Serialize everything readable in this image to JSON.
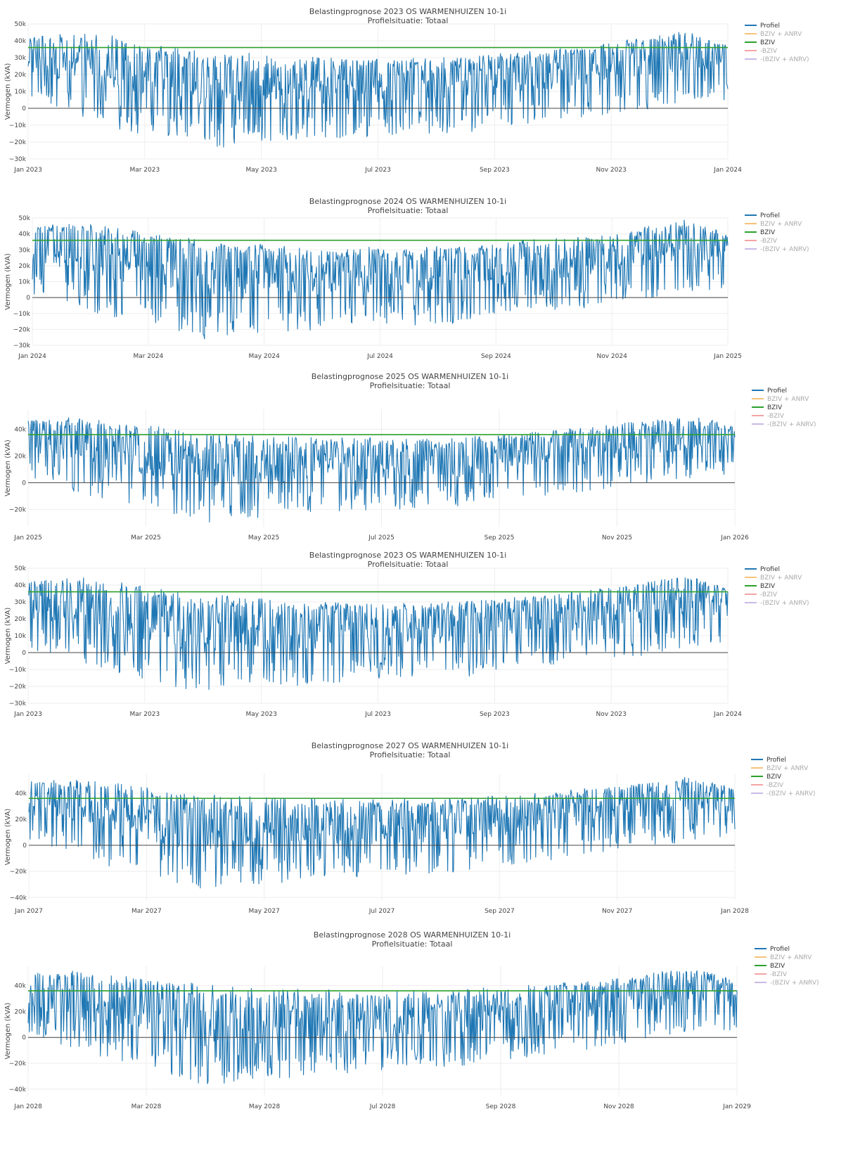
{
  "colors": {
    "profile": "#1f77b4",
    "bziv_anrv": "#f5c37a",
    "bziv": "#2ca02c",
    "neg_bziv": "#f4a4a4",
    "neg_bziv_anrv": "#c9b9e6",
    "zero_line": "#444444",
    "grid": "#eeeeee",
    "legend_text_active": "#333333",
    "legend_text_faded": "#aaaaaa"
  },
  "chart_data": [
    {
      "type": "line",
      "title": "Belastingprognose 2023 OS WARMENHUIZEN 10-1i",
      "subtitle": "Profielsituatie: Totaal",
      "ylabel": "Vermogen (kVA)",
      "x_ticks": [
        "Jan 2023",
        "Mar 2023",
        "May 2023",
        "Jul 2023",
        "Sep 2023",
        "Nov 2023",
        "Jan 2024"
      ],
      "ylim": [
        -30000,
        50000
      ],
      "y_ticks": [
        -30000,
        -20000,
        -10000,
        0,
        10000,
        20000,
        30000,
        40000,
        50000
      ],
      "y_tick_labels": [
        "−30k",
        "−20k",
        "−10k",
        "0",
        "10k",
        "20k",
        "30k",
        "40k",
        "50k"
      ],
      "bziv_level": 36000,
      "profile_envelope_max": [
        42,
        45,
        43,
        38,
        35,
        33,
        31,
        30,
        30,
        30,
        31,
        33,
        35,
        38,
        42,
        46,
        38
      ],
      "profile_envelope_min": [
        2,
        -5,
        -12,
        -18,
        -25,
        -22,
        -20,
        -18,
        -17,
        -15,
        -15,
        -10,
        -8,
        -5,
        -2,
        3,
        5
      ],
      "legend": [
        "Profiel",
        "BZIV + ANRV",
        "BZIV",
        "-BZIV",
        "-(BZIV + ANRV)"
      ],
      "grid": true,
      "legend_position": "right"
    },
    {
      "type": "line",
      "title": "Belastingprognose 2024 OS WARMENHUIZEN 10-1i",
      "subtitle": "Profielsituatie: Totaal",
      "ylabel": "Vermogen (kVA)",
      "x_ticks": [
        "Jan 2024",
        "Mar 2024",
        "May 2024",
        "Jul 2024",
        "Sep 2024",
        "Nov 2024",
        "Jan 2025"
      ],
      "ylim": [
        -30000,
        50000
      ],
      "y_ticks": [
        -30000,
        -20000,
        -10000,
        0,
        10000,
        20000,
        30000,
        40000,
        50000
      ],
      "y_tick_labels": [
        "−30k",
        "−20k",
        "−10k",
        "0",
        "10k",
        "20k",
        "30k",
        "40k",
        "50k"
      ],
      "bziv_level": 36000,
      "profile_envelope_max": [
        45,
        47,
        44,
        40,
        36,
        34,
        33,
        32,
        32,
        32,
        33,
        35,
        38,
        40,
        44,
        49,
        40
      ],
      "profile_envelope_min": [
        2,
        -6,
        -14,
        -20,
        -28,
        -25,
        -22,
        -20,
        -19,
        -17,
        -16,
        -12,
        -9,
        -6,
        -2,
        3,
        5
      ],
      "legend": [
        "Profiel",
        "BZIV + ANRV",
        "BZIV",
        "-BZIV",
        "-(BZIV + ANRV)"
      ],
      "grid": true,
      "legend_position": "right"
    },
    {
      "type": "line",
      "title": "Belastingprognose 2025 OS WARMENHUIZEN 10-1i",
      "subtitle": "Profielsituatie: Totaal",
      "ylabel": "Vermogen (kVA)",
      "x_ticks": [
        "Jan 2025",
        "Mar 2025",
        "May 2025",
        "Jul 2025",
        "Sep 2025",
        "Nov 2025",
        "Jan 2026"
      ],
      "ylim": [
        -33000,
        55000
      ],
      "y_ticks": [
        -20000,
        0,
        20000,
        40000
      ],
      "y_tick_labels": [
        "−20k",
        "0",
        "20k",
        "40k"
      ],
      "bziv_level": 36000,
      "profile_envelope_max": [
        47,
        49,
        46,
        42,
        38,
        36,
        35,
        34,
        34,
        34,
        35,
        37,
        40,
        43,
        47,
        51,
        42
      ],
      "profile_envelope_min": [
        2,
        -7,
        -15,
        -22,
        -30,
        -27,
        -24,
        -22,
        -21,
        -19,
        -18,
        -13,
        -10,
        -7,
        -2,
        3,
        5
      ],
      "legend": [
        "Profiel",
        "BZIV + ANRV",
        "BZIV",
        "-BZIV",
        "-(BZIV + ANRV)"
      ],
      "grid": true,
      "legend_position": "right"
    },
    {
      "type": "line",
      "title": "Belastingprognose 2023 OS WARMENHUIZEN 10-1i",
      "subtitle": "Profielsituatie: Totaal",
      "ylabel": "Vermogen (kVA)",
      "x_ticks": [
        "Jan 2023",
        "Mar 2023",
        "May 2023",
        "Jul 2023",
        "Sep 2023",
        "Nov 2023",
        "Jan 2024"
      ],
      "ylim": [
        -30000,
        50000
      ],
      "y_ticks": [
        -30000,
        -20000,
        -10000,
        0,
        10000,
        20000,
        30000,
        40000,
        50000
      ],
      "y_tick_labels": [
        "−30k",
        "−20k",
        "−10k",
        "0",
        "10k",
        "20k",
        "30k",
        "40k",
        "50k"
      ],
      "bziv_level": 36000,
      "profile_envelope_max": [
        42,
        45,
        43,
        38,
        35,
        33,
        31,
        30,
        30,
        30,
        31,
        33,
        35,
        38,
        42,
        46,
        38
      ],
      "profile_envelope_min": [
        2,
        -5,
        -12,
        -18,
        -25,
        -22,
        -20,
        -18,
        -17,
        -15,
        -15,
        -10,
        -8,
        -5,
        -2,
        3,
        5
      ],
      "legend": [
        "Profiel",
        "BZIV + ANRV",
        "BZIV",
        "-BZIV",
        "-(BZIV + ANRV)"
      ],
      "grid": true,
      "legend_position": "right"
    },
    {
      "type": "line",
      "title": "Belastingprognose 2027 OS WARMENHUIZEN 10-1i",
      "subtitle": "Profielsituatie: Totaal",
      "ylabel": "Vermogen (kVA)",
      "x_ticks": [
        "Jan 2027",
        "Mar 2027",
        "May 2027",
        "Jul 2027",
        "Sep 2027",
        "Nov 2027",
        "Jan 2028"
      ],
      "ylim": [
        -42000,
        55000
      ],
      "y_ticks": [
        -40000,
        -20000,
        0,
        20000,
        40000
      ],
      "y_tick_labels": [
        "−40k",
        "−20k",
        "0",
        "20k",
        "40k"
      ],
      "bziv_level": 36000,
      "profile_envelope_max": [
        49,
        51,
        48,
        44,
        40,
        38,
        37,
        36,
        36,
        36,
        37,
        39,
        42,
        45,
        49,
        53,
        44
      ],
      "profile_envelope_min": [
        2,
        -8,
        -18,
        -26,
        -35,
        -31,
        -28,
        -25,
        -24,
        -22,
        -20,
        -15,
        -11,
        -8,
        -2,
        3,
        5
      ],
      "legend": [
        "Profiel",
        "BZIV + ANRV",
        "BZIV",
        "-BZIV",
        "-(BZIV + ANRV)"
      ],
      "grid": true,
      "legend_position": "right"
    },
    {
      "type": "line",
      "title": "Belastingprognose 2028 OS WARMENHUIZEN 10-1i",
      "subtitle": "Profielsituatie: Totaal",
      "ylabel": "Vermogen (kVA)",
      "x_ticks": [
        "Jan 2028",
        "Mar 2028",
        "May 2028",
        "Jul 2028",
        "Sep 2028",
        "Nov 2028",
        "Jan 2029"
      ],
      "ylim": [
        -45000,
        55000
      ],
      "y_ticks": [
        -40000,
        -20000,
        0,
        20000,
        40000
      ],
      "y_tick_labels": [
        "−40k",
        "−20k",
        "0",
        "20k",
        "40k"
      ],
      "bziv_level": 36000,
      "profile_envelope_max": [
        50,
        52,
        49,
        45,
        41,
        39,
        38,
        37,
        37,
        37,
        38,
        40,
        43,
        46,
        50,
        54,
        45
      ],
      "profile_envelope_min": [
        2,
        -9,
        -20,
        -29,
        -38,
        -34,
        -31,
        -28,
        -27,
        -24,
        -22,
        -17,
        -12,
        -9,
        -2,
        3,
        5
      ],
      "legend": [
        "Profiel",
        "BZIV + ANRV",
        "BZIV",
        "-BZIV",
        "-(BZIV + ANRV)"
      ],
      "grid": true,
      "legend_position": "right"
    }
  ]
}
